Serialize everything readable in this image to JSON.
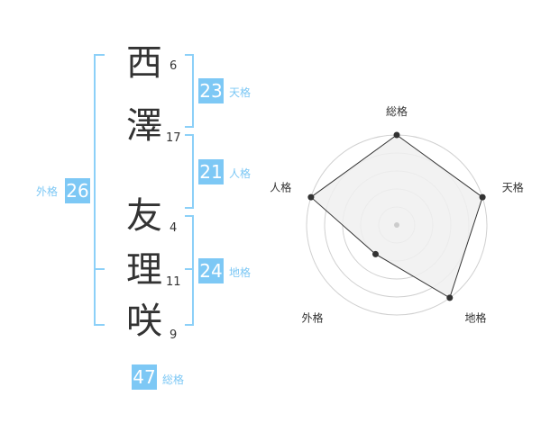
{
  "name": {
    "chars": [
      {
        "char": "西",
        "strokes": "6"
      },
      {
        "char": "澤",
        "strokes": "17"
      },
      {
        "char": "友",
        "strokes": "4"
      },
      {
        "char": "理",
        "strokes": "11"
      },
      {
        "char": "咲",
        "strokes": "9"
      }
    ]
  },
  "fortunes": {
    "tenkaku": {
      "label": "天格",
      "value": "23"
    },
    "jinkaku": {
      "label": "人格",
      "value": "21"
    },
    "chikaku": {
      "label": "地格",
      "value": "24"
    },
    "gaikaku": {
      "label": "外格",
      "value": "26"
    },
    "soukaku": {
      "label": "総格",
      "value": "47"
    }
  },
  "colors": {
    "accent": "#7dc8f5",
    "radar_fill": "#f0f0f0",
    "radar_line": "#333333"
  },
  "chart_data": {
    "type": "radar",
    "axes": [
      "総格",
      "天格",
      "地格",
      "外格",
      "人格"
    ],
    "values": [
      5,
      5,
      5,
      2,
      5
    ],
    "range": [
      0,
      5
    ]
  }
}
